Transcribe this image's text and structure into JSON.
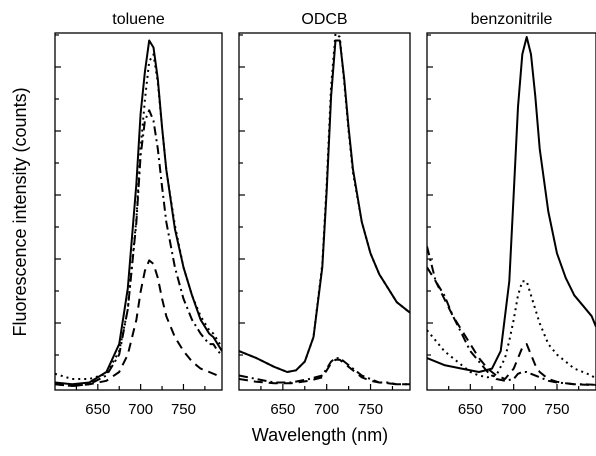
{
  "figure": {
    "xlabel": "Wavelength (nm)",
    "ylabel": "Fluorescence intensity (counts)"
  },
  "chart_data": [
    {
      "type": "line",
      "title": "toluene",
      "xlim": [
        600,
        795
      ],
      "ylim": [
        0,
        1.0
      ],
      "xticks": [
        650,
        700,
        750
      ],
      "grid": false,
      "series": [
        {
          "style": "solid",
          "x": [
            600,
            620,
            640,
            660,
            675,
            685,
            695,
            700,
            705,
            710,
            715,
            720,
            725,
            730,
            740,
            750,
            760,
            770,
            780,
            785,
            790,
            795
          ],
          "y": [
            0.01,
            0.005,
            0.01,
            0.04,
            0.12,
            0.28,
            0.58,
            0.78,
            0.9,
            0.99,
            0.97,
            0.88,
            0.74,
            0.62,
            0.45,
            0.34,
            0.26,
            0.19,
            0.15,
            0.14,
            0.12,
            0.1
          ]
        },
        {
          "style": "dotted",
          "x": [
            600,
            620,
            640,
            660,
            675,
            685,
            695,
            700,
            705,
            710,
            715,
            720,
            725,
            730,
            740,
            750,
            760,
            770,
            780,
            785,
            790,
            795
          ],
          "y": [
            0.035,
            0.02,
            0.02,
            0.035,
            0.1,
            0.22,
            0.48,
            0.68,
            0.82,
            0.93,
            0.95,
            0.87,
            0.74,
            0.62,
            0.46,
            0.34,
            0.26,
            0.2,
            0.16,
            0.15,
            0.13,
            0.11
          ]
        },
        {
          "style": "dashdot",
          "x": [
            600,
            620,
            640,
            660,
            675,
            685,
            695,
            700,
            705,
            710,
            715,
            720,
            725,
            730,
            740,
            750,
            760,
            770,
            780,
            785,
            790,
            795
          ],
          "y": [
            0.005,
            0.0,
            0.005,
            0.03,
            0.09,
            0.22,
            0.47,
            0.66,
            0.76,
            0.79,
            0.76,
            0.68,
            0.57,
            0.47,
            0.34,
            0.25,
            0.19,
            0.15,
            0.12,
            0.12,
            0.1,
            0.09
          ]
        },
        {
          "style": "dashed",
          "x": [
            600,
            620,
            640,
            660,
            675,
            685,
            695,
            700,
            705,
            710,
            715,
            720,
            725,
            730,
            740,
            750,
            760,
            770,
            780,
            790,
            795
          ],
          "y": [
            0.005,
            0.0,
            0.005,
            0.015,
            0.04,
            0.09,
            0.19,
            0.27,
            0.33,
            0.36,
            0.35,
            0.31,
            0.25,
            0.2,
            0.14,
            0.1,
            0.07,
            0.05,
            0.04,
            0.03,
            0.03
          ]
        }
      ]
    },
    {
      "type": "line",
      "title": "ODCB",
      "xlim": [
        600,
        795
      ],
      "ylim": [
        0,
        1.0
      ],
      "xticks": [
        650,
        700,
        750
      ],
      "grid": false,
      "series": [
        {
          "style": "solid",
          "x": [
            600,
            620,
            640,
            655,
            665,
            675,
            685,
            695,
            700,
            705,
            710,
            715,
            720,
            725,
            730,
            740,
            750,
            760,
            770,
            780,
            790,
            795
          ],
          "y": [
            0.1,
            0.08,
            0.055,
            0.04,
            0.045,
            0.07,
            0.14,
            0.34,
            0.56,
            0.83,
            0.99,
            0.99,
            0.88,
            0.74,
            0.62,
            0.47,
            0.38,
            0.32,
            0.28,
            0.24,
            0.22,
            0.21
          ]
        },
        {
          "style": "dotted",
          "x": [
            600,
            620,
            640,
            655,
            665,
            675,
            685,
            695,
            700,
            705,
            710,
            715,
            720,
            725,
            730,
            740,
            750,
            760,
            770,
            780,
            790,
            795
          ],
          "y": [
            0.1,
            0.08,
            0.055,
            0.04,
            0.045,
            0.07,
            0.14,
            0.35,
            0.58,
            0.86,
            1.01,
            1.0,
            0.87,
            0.73,
            0.61,
            0.47,
            0.38,
            0.32,
            0.28,
            0.24,
            0.22,
            0.21
          ]
        },
        {
          "style": "dashdot",
          "x": [
            600,
            620,
            640,
            660,
            680,
            695,
            700,
            705,
            710,
            715,
            720,
            725,
            730,
            740,
            750,
            760,
            770,
            780,
            790,
            795
          ],
          "y": [
            0.03,
            0.02,
            0.01,
            0.01,
            0.02,
            0.03,
            0.05,
            0.07,
            0.08,
            0.08,
            0.07,
            0.06,
            0.05,
            0.03,
            0.02,
            0.01,
            0.01,
            0.005,
            0.005,
            0.005
          ]
        },
        {
          "style": "dashed",
          "x": [
            600,
            620,
            640,
            660,
            680,
            695,
            700,
            705,
            710,
            715,
            720,
            725,
            730,
            740,
            750,
            760,
            770,
            780,
            790,
            795
          ],
          "y": [
            0.02,
            0.012,
            0.008,
            0.008,
            0.015,
            0.025,
            0.045,
            0.065,
            0.075,
            0.075,
            0.065,
            0.055,
            0.045,
            0.025,
            0.015,
            0.01,
            0.008,
            0.005,
            0.005,
            0.005
          ]
        }
      ]
    },
    {
      "type": "line",
      "title": "benzonitrile",
      "xlim": [
        600,
        795
      ],
      "ylim": [
        0,
        1.0
      ],
      "xticks": [
        650,
        700,
        750
      ],
      "grid": false,
      "series": [
        {
          "style": "solid",
          "x": [
            600,
            620,
            640,
            660,
            675,
            685,
            695,
            700,
            705,
            710,
            715,
            720,
            725,
            730,
            740,
            750,
            760,
            770,
            780,
            790,
            795
          ],
          "y": [
            0.08,
            0.06,
            0.05,
            0.04,
            0.05,
            0.1,
            0.3,
            0.55,
            0.8,
            0.95,
            1.0,
            0.95,
            0.83,
            0.68,
            0.5,
            0.38,
            0.31,
            0.26,
            0.23,
            0.2,
            0.17
          ]
        },
        {
          "style": "dotted",
          "x": [
            600,
            610,
            620,
            630,
            640,
            650,
            660,
            670,
            680,
            690,
            695,
            700,
            705,
            710,
            715,
            720,
            725,
            730,
            740,
            750,
            760,
            770,
            780,
            790,
            795
          ],
          "y": [
            0.16,
            0.13,
            0.1,
            0.08,
            0.06,
            0.04,
            0.03,
            0.025,
            0.03,
            0.08,
            0.13,
            0.19,
            0.26,
            0.3,
            0.3,
            0.26,
            0.22,
            0.18,
            0.12,
            0.09,
            0.07,
            0.05,
            0.04,
            0.03,
            0.02
          ]
        },
        {
          "style": "dashdot",
          "x": [
            600,
            610,
            620,
            630,
            640,
            650,
            660,
            670,
            680,
            690,
            700,
            705,
            710,
            715,
            720,
            730,
            740,
            750,
            760,
            770,
            780,
            790,
            795
          ],
          "y": [
            0.4,
            0.3,
            0.26,
            0.2,
            0.15,
            0.1,
            0.07,
            0.04,
            0.02,
            0.015,
            0.02,
            0.035,
            0.04,
            0.04,
            0.035,
            0.025,
            0.015,
            0.01,
            0.008,
            0.005,
            0.005,
            0.004,
            0.003
          ]
        },
        {
          "style": "dashed",
          "x": [
            600,
            610,
            620,
            630,
            640,
            650,
            660,
            670,
            680,
            690,
            700,
            705,
            710,
            715,
            720,
            725,
            730,
            740,
            750,
            760,
            770,
            780,
            790,
            795
          ],
          "y": [
            0.34,
            0.3,
            0.25,
            0.2,
            0.16,
            0.12,
            0.08,
            0.05,
            0.03,
            0.02,
            0.05,
            0.08,
            0.11,
            0.12,
            0.09,
            0.06,
            0.04,
            0.02,
            0.012,
            0.008,
            0.005,
            0.004,
            0.003,
            0.003
          ]
        }
      ]
    }
  ]
}
